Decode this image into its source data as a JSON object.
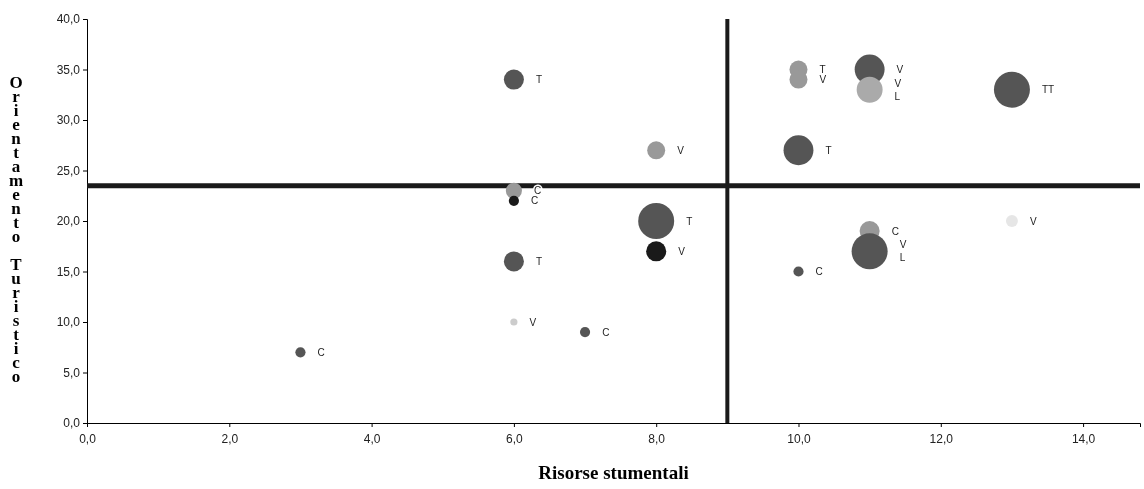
{
  "chart_data": {
    "type": "bubble",
    "xlabel": "Risorse stumentali",
    "ylabel": "Orientamento Turistico",
    "x": [
      3,
      6,
      6,
      6,
      6,
      6,
      7,
      8,
      8,
      8,
      10,
      10,
      10,
      10,
      11,
      11,
      11,
      11,
      13,
      13
    ],
    "values": [
      7,
      34,
      23,
      22,
      16,
      10,
      9,
      27,
      20,
      17,
      35,
      34,
      27,
      15,
      35,
      33,
      19,
      17,
      33,
      20
    ],
    "sizes": [
      0.08,
      0.31,
      0.2,
      0.08,
      0.31,
      0.04,
      0.08,
      0.25,
      1,
      0.31,
      0.25,
      0.25,
      0.69,
      0.08,
      0.69,
      0.52,
      0.31,
      1,
      1,
      0.11
    ],
    "colors": [
      "#555555",
      "#555555",
      "#999999",
      "#1a1a1a",
      "#555555",
      "#cccccc",
      "#555555",
      "#999999",
      "#555555",
      "#1a1a1a",
      "#999999",
      "#999999",
      "#555555",
      "#555555",
      "#555555",
      "#aaaaaa",
      "#999999",
      "#555555",
      "#555555",
      "#e6e6e6"
    ],
    "xlim": [
      0,
      14.8
    ],
    "ylim": [
      0,
      40
    ],
    "xticks": [
      {
        "value": 0,
        "label": "0,0"
      },
      {
        "value": 2,
        "label": "2,0"
      },
      {
        "value": 4,
        "label": "4,0"
      },
      {
        "value": 6,
        "label": "6,0"
      },
      {
        "value": 8,
        "label": "8,0"
      },
      {
        "value": 10,
        "label": "10,0"
      },
      {
        "value": 12,
        "label": "12,0"
      },
      {
        "value": 14,
        "label": "14,0"
      }
    ],
    "yticks": [
      {
        "value": 0,
        "label": "0,0"
      },
      {
        "value": 5,
        "label": "5,0"
      },
      {
        "value": 10,
        "label": "10,0"
      },
      {
        "value": 15,
        "label": "15,0"
      },
      {
        "value": 20,
        "label": "20,0"
      },
      {
        "value": 25,
        "label": "25,0"
      },
      {
        "value": 30,
        "label": "30,0"
      },
      {
        "value": 35,
        "label": "35,0"
      },
      {
        "value": 40,
        "label": "40,0"
      }
    ],
    "ref_lines": [
      {
        "axis": "x",
        "value": 9,
        "color": "#1a1a1a"
      },
      {
        "axis": "y",
        "value": 23.5,
        "color": "#1a1a1a"
      }
    ],
    "marker": "circle",
    "grid": false,
    "annotations": [
      {
        "text": "C",
        "x": 3,
        "y": 7
      },
      {
        "text": "T",
        "x": 6,
        "y": 34
      },
      {
        "text": "C",
        "x": 6,
        "y": 23
      },
      {
        "text": "C",
        "x": 6,
        "y": 22
      },
      {
        "text": "T",
        "x": 6,
        "y": 16
      },
      {
        "text": "V",
        "x": 6,
        "y": 10
      },
      {
        "text": "C",
        "x": 7,
        "y": 9
      },
      {
        "text": "V",
        "x": 8,
        "y": 27
      },
      {
        "text": "T",
        "x": 8,
        "y": 20
      },
      {
        "text": "V",
        "x": 8,
        "y": 17
      },
      {
        "text": "T",
        "x": 10,
        "y": 35
      },
      {
        "text": "V",
        "x": 10,
        "y": 34
      },
      {
        "text": "T",
        "x": 10,
        "y": 27
      },
      {
        "text": "C",
        "x": 10,
        "y": 15
      },
      {
        "text": "V",
        "x": 11,
        "y": 35
      },
      {
        "text": "V",
        "x": 11,
        "y": 33
      },
      {
        "text": "L",
        "x": 11,
        "y": 33
      },
      {
        "text": "TT",
        "x": 13,
        "y": 33
      },
      {
        "text": "C",
        "x": 11,
        "y": 19
      },
      {
        "text": "V",
        "x": 11,
        "y": 17
      },
      {
        "text": "L",
        "x": 11,
        "y": 17
      },
      {
        "text": "V",
        "x": 13,
        "y": 20
      }
    ]
  }
}
